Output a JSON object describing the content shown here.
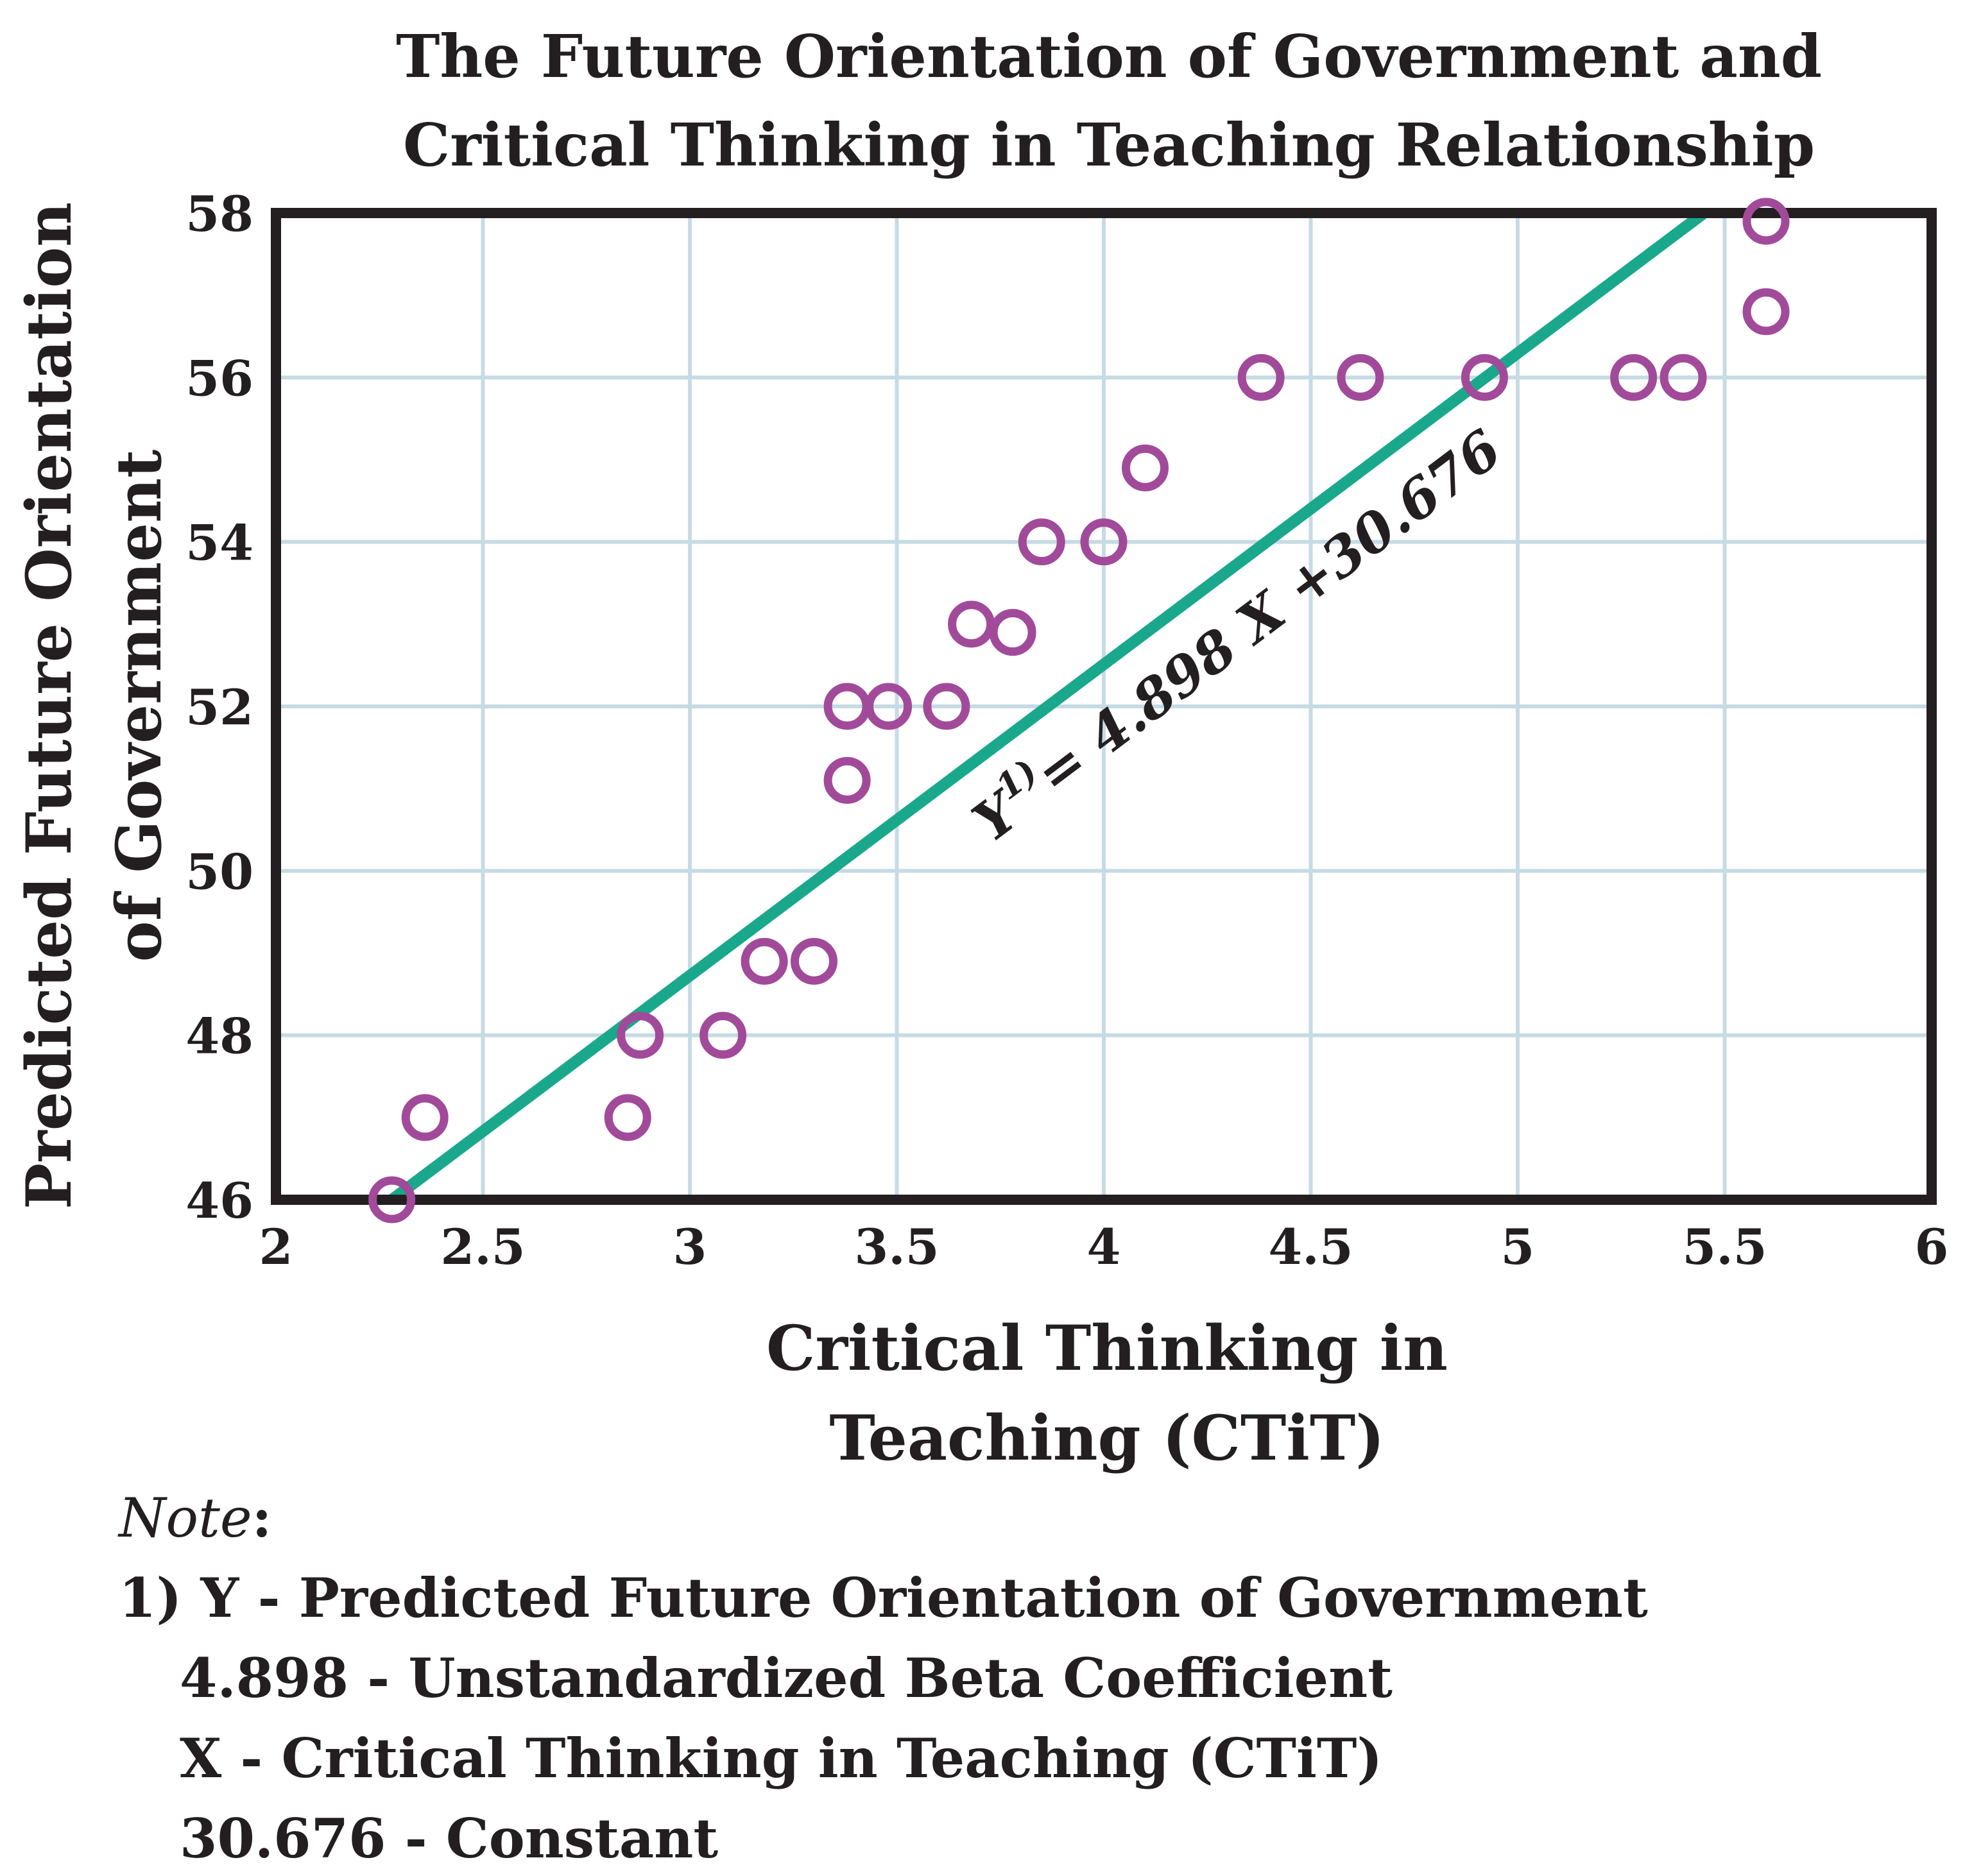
{
  "chart_data": {
    "type": "scatter",
    "title_lines": [
      "The Future Orientation of Government and",
      "Critical Thinking in Teaching Relationship"
    ],
    "xlabel_lines": [
      "Critical Thinking in",
      "Teaching (CTiT)"
    ],
    "ylabel_lines": [
      "Predicted Future Orientation",
      "of Government"
    ],
    "xlim": [
      2,
      6
    ],
    "ylim": [
      46,
      58
    ],
    "x_ticks": [
      "2",
      "2.5",
      "3",
      "3.5",
      "4",
      "4.5",
      "5",
      "5.5",
      "6"
    ],
    "y_ticks": [
      "46",
      "48",
      "50",
      "52",
      "54",
      "56",
      "58"
    ],
    "grid": true,
    "points": [
      {
        "x": 2.28,
        "y": 46.0
      },
      {
        "x": 2.36,
        "y": 47.0
      },
      {
        "x": 2.85,
        "y": 47.0
      },
      {
        "x": 2.88,
        "y": 48.0
      },
      {
        "x": 3.08,
        "y": 48.0
      },
      {
        "x": 3.18,
        "y": 48.9
      },
      {
        "x": 3.3,
        "y": 48.9
      },
      {
        "x": 3.38,
        "y": 51.1
      },
      {
        "x": 3.38,
        "y": 52.0
      },
      {
        "x": 3.48,
        "y": 52.0
      },
      {
        "x": 3.62,
        "y": 52.0
      },
      {
        "x": 3.68,
        "y": 53.0
      },
      {
        "x": 3.78,
        "y": 52.9
      },
      {
        "x": 3.85,
        "y": 54.0
      },
      {
        "x": 4.0,
        "y": 54.0
      },
      {
        "x": 4.1,
        "y": 54.9
      },
      {
        "x": 4.38,
        "y": 56.0
      },
      {
        "x": 4.62,
        "y": 56.0
      },
      {
        "x": 4.92,
        "y": 56.0
      },
      {
        "x": 5.28,
        "y": 56.0
      },
      {
        "x": 5.4,
        "y": 56.0
      },
      {
        "x": 5.6,
        "y": 56.8
      },
      {
        "x": 5.6,
        "y": 57.9
      }
    ],
    "regression": {
      "x_range": [
        2.28,
        5.45
      ],
      "y_range": [
        46.0,
        58.0
      ],
      "slope": 4.898,
      "intercept": 30.676,
      "label_prefix": "Y",
      "label_superscript": "1)",
      "label_rest": "= 4.898 X +30.676"
    },
    "colors": {
      "points": "#a24a9a",
      "line": "#1aa88c",
      "grid": "#c6dbe3",
      "frame": "#231f20",
      "text": "#231f20"
    }
  },
  "note": {
    "heading": "Note",
    "heading_suffix": ":",
    "lines": [
      "1) Y - Predicted Future Orientation of Government",
      "4.898 - Unstandardized Beta Coefficient",
      "X - Critical Thinking in Teaching (CTiT)",
      "30.676 - Constant"
    ]
  }
}
